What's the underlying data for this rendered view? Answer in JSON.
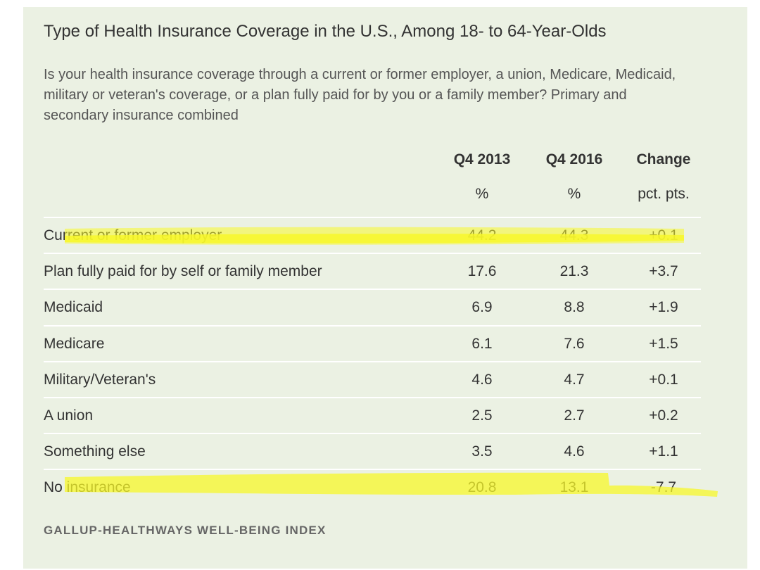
{
  "chart_data": {
    "type": "table",
    "title": "Type of Health Insurance Coverage in the U.S., Among 18- to 64-Year-Olds",
    "subtitle": "Is your health insurance coverage through a current or former employer, a union, Medicare, Medicaid, military or veteran's coverage, or a plan fully paid for by you or a family member? Primary and secondary insurance combined",
    "columns": [
      "Q4 2013",
      "Q4 2016",
      "Change"
    ],
    "column_units": [
      "%",
      "%",
      "pct. pts."
    ],
    "rows": [
      {
        "label": "Current or former employer",
        "q4_2013": "44.2",
        "q4_2016": "44.3",
        "change": "+0.1",
        "highlighted": true
      },
      {
        "label": "Plan fully paid for by self or family member",
        "q4_2013": "17.6",
        "q4_2016": "21.3",
        "change": "+3.7",
        "highlighted": false
      },
      {
        "label": "Medicaid",
        "q4_2013": "6.9",
        "q4_2016": "8.8",
        "change": "+1.9",
        "highlighted": false
      },
      {
        "label": "Medicare",
        "q4_2013": "6.1",
        "q4_2016": "7.6",
        "change": "+1.5",
        "highlighted": false
      },
      {
        "label": "Military/Veteran's",
        "q4_2013": "4.6",
        "q4_2016": "4.7",
        "change": "+0.1",
        "highlighted": false
      },
      {
        "label": "A union",
        "q4_2013": "2.5",
        "q4_2016": "2.7",
        "change": "+0.2",
        "highlighted": false
      },
      {
        "label": "Something else",
        "q4_2013": "3.5",
        "q4_2016": "4.6",
        "change": "+1.1",
        "highlighted": false
      },
      {
        "label": "No insurance",
        "q4_2013": "20.8",
        "q4_2016": "13.1",
        "change": "-7.7",
        "highlighted": true
      }
    ],
    "source": "GALLUP-HEALTHWAYS WELL-BEING INDEX"
  },
  "colors": {
    "background": "#ebf1e3",
    "highlight": "#f7f72a",
    "text": "#333333",
    "row_rule": "#ffffff"
  }
}
